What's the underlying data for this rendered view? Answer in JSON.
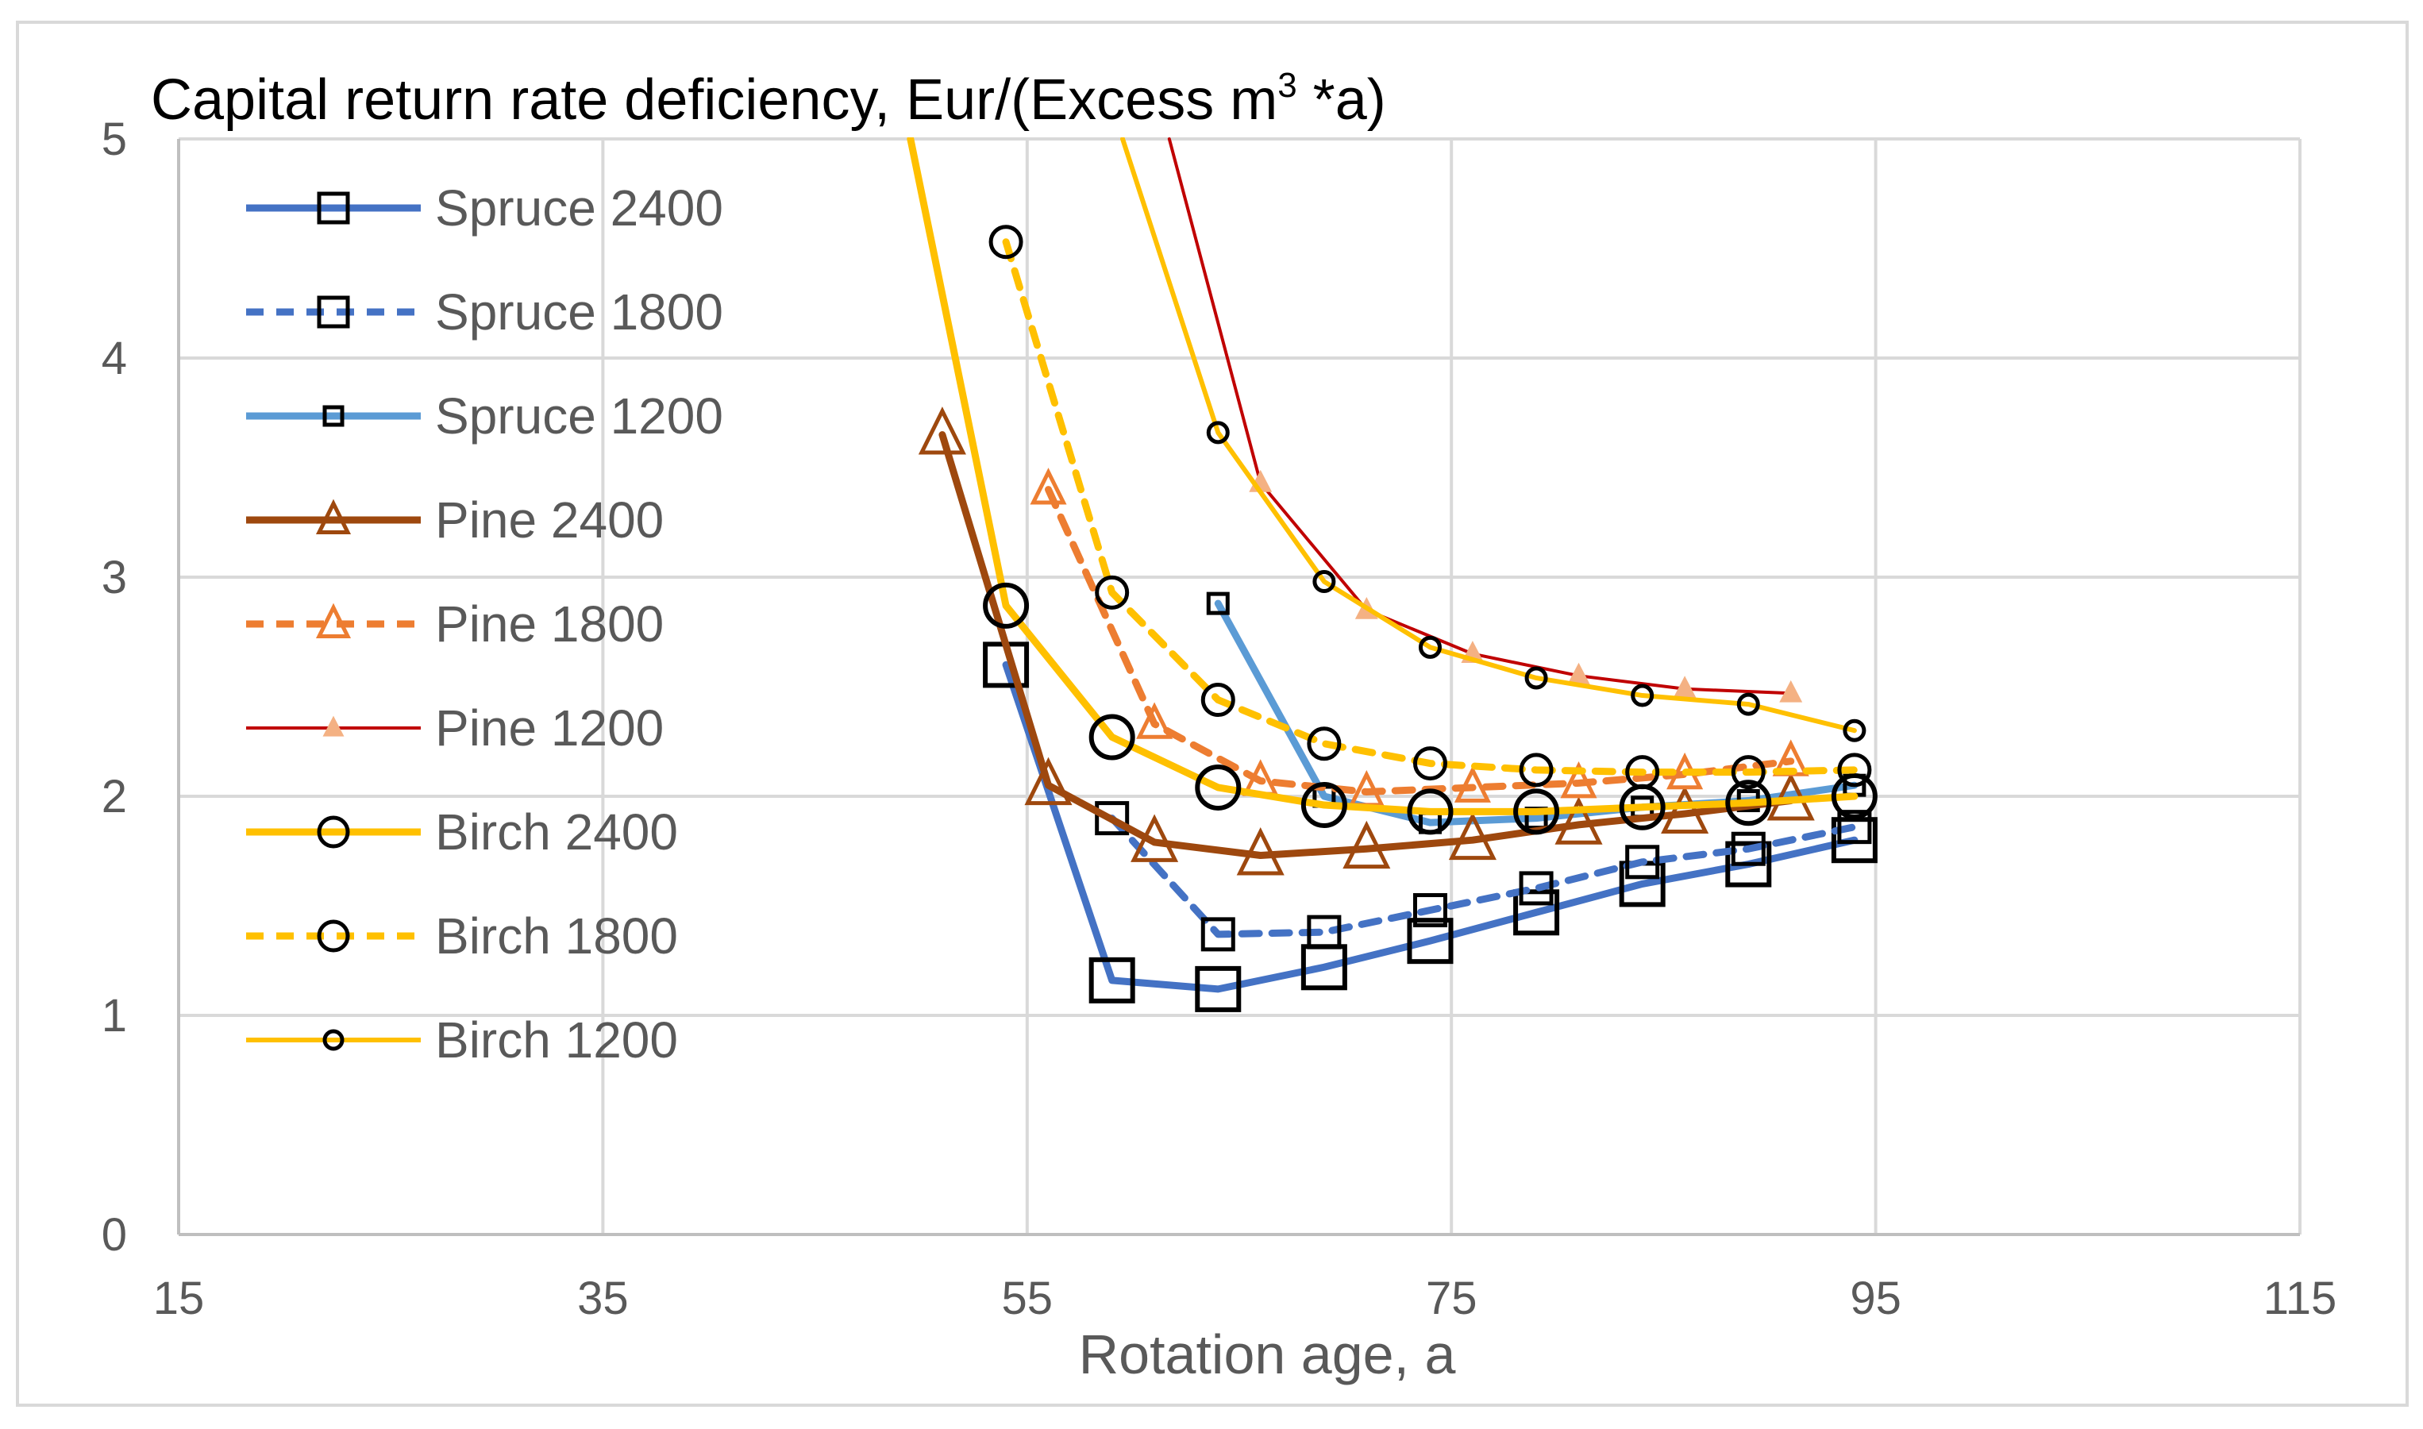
{
  "chart_data": {
    "type": "line",
    "title_main": "Capital return rate deficiency, Eur/(Excess m",
    "title_sup": "3",
    "title_end": " *a)",
    "xlabel": "Rotation age, a",
    "ylabel": "",
    "xlim": [
      15,
      115
    ],
    "ylim": [
      0,
      5
    ],
    "xticks": [
      "15",
      "35",
      "55",
      "75",
      "95",
      "115"
    ],
    "yticks": [
      "0",
      "1",
      "2",
      "3",
      "4",
      "5"
    ],
    "grid": true,
    "legend_position": "upper-left",
    "series": [
      {
        "name": "Spruce 2400",
        "color": "#4472C4",
        "dash": "solid",
        "marker": "square",
        "marker_size": "large",
        "line_weight": "heavy",
        "x": [
          54,
          59,
          64,
          69,
          74,
          79,
          84,
          89,
          94
        ],
        "y": [
          2.6,
          1.16,
          1.12,
          1.22,
          1.34,
          1.47,
          1.6,
          1.69,
          1.8
        ]
      },
      {
        "name": "Spruce 1800",
        "color": "#4472C4",
        "dash": "dashed",
        "marker": "square",
        "marker_size": "medium",
        "line_weight": "heavy",
        "x": [
          59,
          64,
          69,
          74,
          79,
          84,
          89,
          94
        ],
        "y": [
          1.9,
          1.37,
          1.38,
          1.48,
          1.58,
          1.7,
          1.76,
          1.86
        ]
      },
      {
        "name": "Spruce 1200",
        "color": "#5B9BD5",
        "dash": "solid",
        "marker": "square",
        "marker_size": "small",
        "line_weight": "heavy",
        "x": [
          64,
          69,
          74,
          79,
          84,
          89,
          94
        ],
        "y": [
          2.88,
          2.0,
          1.88,
          1.9,
          1.95,
          1.98,
          2.05
        ]
      },
      {
        "name": "Pine 2400",
        "color": "#9E480E",
        "dash": "solid",
        "marker": "triangle",
        "marker_size": "large",
        "line_weight": "heavy",
        "x": [
          51,
          56,
          61,
          66,
          71,
          76,
          81,
          86,
          91
        ],
        "y": [
          3.65,
          2.05,
          1.79,
          1.73,
          1.76,
          1.8,
          1.87,
          1.92,
          1.98
        ]
      },
      {
        "name": "Pine 1800",
        "color": "#ED7D31",
        "dash": "dashed",
        "marker": "triangle",
        "marker_size": "medium",
        "line_weight": "heavy",
        "x": [
          56,
          61,
          66,
          71,
          76,
          81,
          86,
          91
        ],
        "y": [
          3.4,
          2.33,
          2.07,
          2.02,
          2.04,
          2.06,
          2.1,
          2.16
        ]
      },
      {
        "name": "Pine 1200",
        "color": "#C00000",
        "dash": "solid",
        "marker": "triangle-filled",
        "marker_size": "small",
        "line_weight": "thin",
        "x": [
          61.7,
          66,
          71,
          76,
          81,
          86,
          91
        ],
        "y": [
          5.0,
          3.43,
          2.85,
          2.65,
          2.55,
          2.49,
          2.47
        ]
      },
      {
        "name": "Birch 2400",
        "color": "#FFC000",
        "dash": "solid",
        "marker": "circle",
        "marker_size": "large",
        "line_weight": "heavy",
        "x": [
          49.5,
          54,
          59,
          64,
          69,
          74,
          79,
          84,
          89,
          94
        ],
        "y": [
          5.0,
          2.87,
          2.27,
          2.04,
          1.96,
          1.93,
          1.93,
          1.95,
          1.97,
          2.0
        ]
      },
      {
        "name": "Birch 1800",
        "color": "#FFC000",
        "dash": "dashed",
        "marker": "circle",
        "marker_size": "medium",
        "line_weight": "heavy",
        "x": [
          54,
          59,
          64,
          69,
          74,
          79,
          84,
          89,
          94
        ],
        "y": [
          4.53,
          2.93,
          2.44,
          2.24,
          2.15,
          2.12,
          2.11,
          2.11,
          2.12
        ]
      },
      {
        "name": "Birch 1200",
        "color": "#FFC000",
        "dash": "solid",
        "marker": "circle",
        "marker_size": "small",
        "line_weight": "medium",
        "x": [
          59.5,
          64,
          69,
          74,
          79,
          84,
          89,
          94
        ],
        "y": [
          5.0,
          3.66,
          2.98,
          2.68,
          2.54,
          2.46,
          2.42,
          2.3
        ]
      }
    ]
  }
}
